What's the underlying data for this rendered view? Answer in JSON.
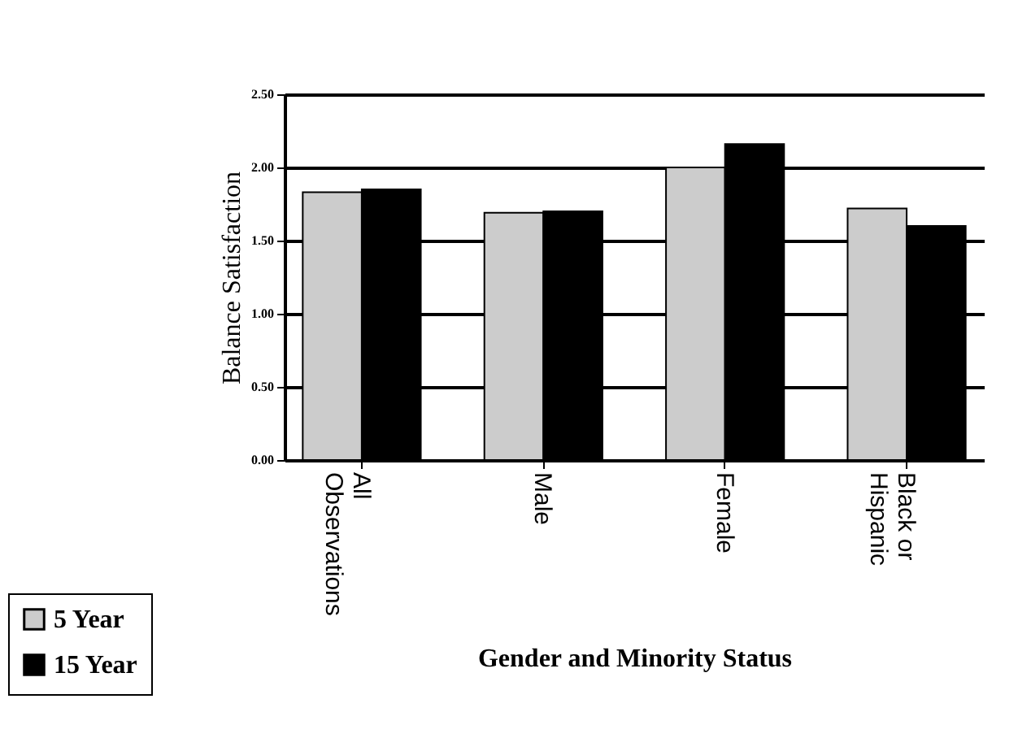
{
  "chart_data": {
    "type": "bar",
    "xlabel": "Gender and Minority Status",
    "ylabel": "Balance Satisfaction",
    "categories": [
      "All\nObservations",
      "Male",
      "Female",
      "Black or\nHispanic"
    ],
    "series": [
      {
        "name": "5 Year",
        "color": "#cccccc",
        "values": [
          1.83,
          1.69,
          2.0,
          1.72
        ]
      },
      {
        "name": "15 Year",
        "color": "#000000",
        "values": [
          1.85,
          1.7,
          2.16,
          1.6
        ]
      }
    ],
    "ylim": [
      0,
      2.5
    ],
    "yticks": [
      {
        "value": 0,
        "label": "0.00"
      },
      {
        "value": 0.5,
        "label": "0.50"
      },
      {
        "value": 1,
        "label": "1.00"
      },
      {
        "value": 1.5,
        "label": "1.50"
      },
      {
        "value": 2,
        "label": "2.00"
      },
      {
        "value": 2.5,
        "label": "2.50"
      }
    ],
    "grid": "y",
    "legend": "bottom left"
  }
}
